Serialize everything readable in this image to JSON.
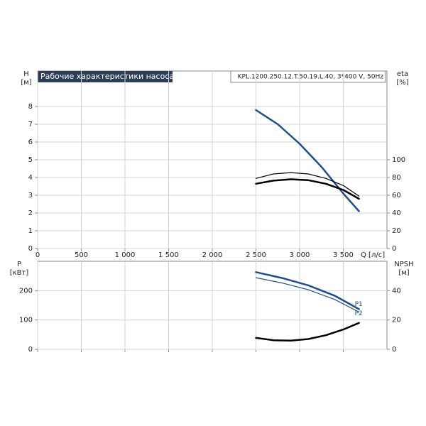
{
  "chart_data": [
    {
      "type": "line",
      "title": "Рабочие характеристики насоса",
      "subtitle": "KPL.1200.250.12.T.50.19.L.40, 3*400 V, 50Hz",
      "ylabel": "H",
      "yunit": "[м]",
      "y2label": "eta",
      "y2unit": "[%]",
      "xlabel": "Q [л/с]",
      "xlim": [
        0,
        4000
      ],
      "xticks": [
        0,
        500,
        {
          "value": 1000,
          "label": "1 000"
        },
        {
          "value": 1500,
          "label": "1 500"
        },
        {
          "value": 2000,
          "label": "2 000"
        },
        {
          "value": 2500,
          "label": "2 500"
        },
        {
          "value": 3000,
          "label": "3 000"
        },
        {
          "value": 3500,
          "label": "3 500"
        }
      ],
      "ylim": [
        0,
        10
      ],
      "yticks": [
        0,
        1,
        2,
        3,
        4,
        5,
        6,
        7,
        8
      ],
      "y2lim": [
        0,
        200
      ],
      "y2ticks": [
        0,
        20,
        40,
        60,
        80,
        100
      ],
      "grid": true,
      "series": [
        {
          "color": "#1f4e8c",
          "linewidth": 2.5,
          "x": [
            2500,
            2750,
            3000,
            3250,
            3500,
            3680
          ],
          "values": [
            7.8,
            7.0,
            5.9,
            4.6,
            3.1,
            2.1
          ]
        },
        {
          "color": "#000000",
          "linewidth": 1.2,
          "axis": "y2",
          "x": [
            2500,
            2700,
            2900,
            3100,
            3300,
            3500,
            3680
          ],
          "values": [
            79,
            84,
            85.5,
            84,
            79,
            71,
            59
          ]
        },
        {
          "color": "#000000",
          "linewidth": 2.5,
          "axis": "y2",
          "x": [
            2500,
            2700,
            2900,
            3100,
            3300,
            3500,
            3680
          ],
          "values": [
            73,
            76.5,
            78,
            77,
            73,
            66,
            56
          ]
        }
      ]
    },
    {
      "type": "line",
      "ylabel": "P",
      "yunit": "[кВт]",
      "y2label": "NPSH",
      "y2unit": "[м]",
      "annotations": [
        "P1",
        "P2"
      ],
      "xlim": [
        0,
        4000
      ],
      "ylim": [
        0,
        300
      ],
      "yticks": [
        0,
        100,
        200
      ],
      "y2lim": [
        0,
        60
      ],
      "y2ticks": [
        0,
        20,
        40
      ],
      "grid": true,
      "series": [
        {
          "color": "#1f4e8c",
          "linewidth": 2.5,
          "x": [
            2500,
            2800,
            3100,
            3400,
            3680
          ],
          "values": [
            263,
            243,
            218,
            183,
            137
          ]
        },
        {
          "color": "#1f4e8c",
          "linewidth": 1.2,
          "x": [
            2500,
            2800,
            3100,
            3400,
            3680
          ],
          "values": [
            244,
            226,
            203,
            170,
            127
          ]
        },
        {
          "color": "#000000",
          "linewidth": 2.5,
          "axis": "y2",
          "x": [
            2500,
            2700,
            2900,
            3100,
            3300,
            3500,
            3680
          ],
          "values": [
            7.8,
            6.2,
            5.9,
            7.0,
            9.6,
            13.5,
            18
          ]
        }
      ]
    }
  ]
}
